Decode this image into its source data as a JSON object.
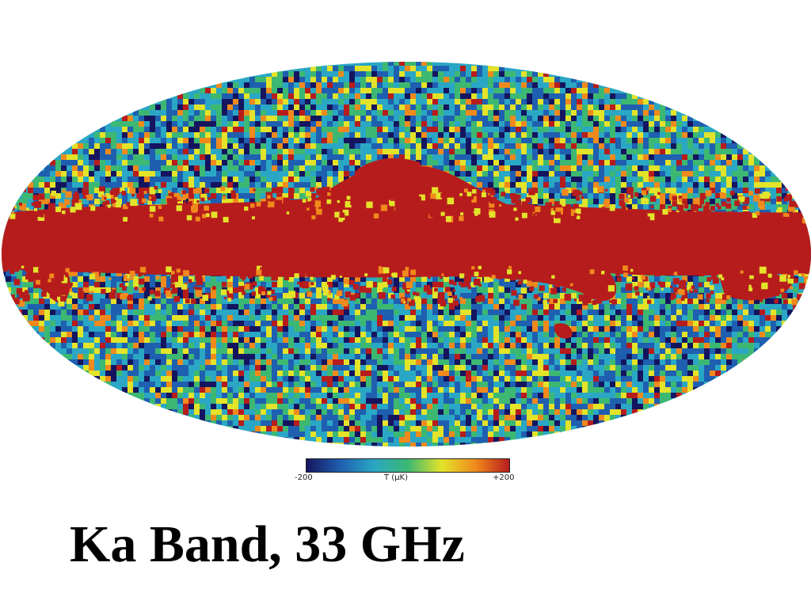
{
  "map": {
    "projection": "mollweide",
    "colormap": [
      "#15155f",
      "#1f5fb0",
      "#2aa7c4",
      "#3cb872",
      "#e3e32a",
      "#f08a1c",
      "#b71c1c"
    ],
    "band_color": "#b71c1c",
    "background": "#ffffff"
  },
  "colorbar": {
    "min_label": "-200",
    "unit_label": "T (µK)",
    "max_label": "+200"
  },
  "caption": {
    "title": "Ka Band, 33 GHz"
  }
}
